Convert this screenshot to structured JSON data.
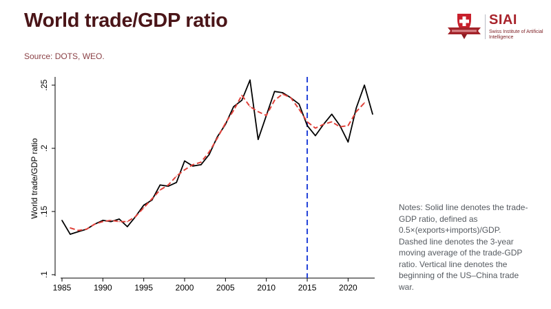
{
  "header": {
    "title": "World trade/GDP ratio",
    "source": "Source: DOTS, WEO."
  },
  "logo": {
    "name": "SIAI",
    "subtitle": "Swiss Institute of Artificial Intelligence",
    "brand_color": "#a8232b"
  },
  "notes": "Notes: Solid line denotes the trade-GDP ratio, defined as 0.5×(exports+imports)/GDP. Dashed line denotes the 3-year moving average of the trade-GDP ratio. Vertical line denotes the beginning of the US–China trade war.",
  "chart_data": {
    "type": "line",
    "title": "World trade/GDP ratio",
    "xlabel": "",
    "ylabel": "World trade/GDP ratio",
    "xlim": [
      1985,
      2023
    ],
    "ylim": [
      0.1,
      0.25
    ],
    "xticks": [
      1985,
      1990,
      1995,
      2000,
      2005,
      2010,
      2015,
      2020
    ],
    "yticks": [
      0.1,
      0.15,
      0.2,
      0.25
    ],
    "ytick_labels": [
      ".1",
      ".15",
      ".2",
      ".25"
    ],
    "grid": false,
    "vline": {
      "x": 2015,
      "label": "Beginning of US–China trade war",
      "color": "#1f3fd8",
      "style": "dashed"
    },
    "series": [
      {
        "name": "Trade-GDP ratio",
        "style": "solid",
        "color": "#000000",
        "x": [
          1985,
          1986,
          1987,
          1988,
          1989,
          1990,
          1991,
          1992,
          1993,
          1994,
          1995,
          1996,
          1997,
          1998,
          1999,
          2000,
          2001,
          2002,
          2003,
          2004,
          2005,
          2006,
          2007,
          2008,
          2009,
          2010,
          2011,
          2012,
          2013,
          2014,
          2015,
          2016,
          2017,
          2018,
          2019,
          2020,
          2021,
          2022,
          2023
        ],
        "values": [
          0.143,
          0.132,
          0.134,
          0.136,
          0.14,
          0.143,
          0.142,
          0.144,
          0.138,
          0.146,
          0.155,
          0.159,
          0.171,
          0.17,
          0.173,
          0.19,
          0.186,
          0.187,
          0.195,
          0.209,
          0.219,
          0.233,
          0.238,
          0.254,
          0.207,
          0.226,
          0.245,
          0.244,
          0.24,
          0.235,
          0.218,
          0.21,
          0.219,
          0.227,
          0.218,
          0.205,
          0.232,
          0.25,
          0.227
        ]
      },
      {
        "name": "3-year moving average",
        "style": "dashed",
        "color": "#e0413a",
        "x": [
          1986,
          1987,
          1988,
          1989,
          1990,
          1991,
          1992,
          1993,
          1994,
          1995,
          1996,
          1997,
          1998,
          1999,
          2000,
          2001,
          2002,
          2003,
          2004,
          2005,
          2006,
          2007,
          2008,
          2009,
          2010,
          2011,
          2012,
          2013,
          2014,
          2015,
          2016,
          2017,
          2018,
          2019,
          2020,
          2021,
          2022
        ],
        "values": [
          0.137,
          0.135,
          0.136,
          0.14,
          0.142,
          0.143,
          0.142,
          0.142,
          0.146,
          0.153,
          0.16,
          0.167,
          0.171,
          0.178,
          0.183,
          0.187,
          0.189,
          0.197,
          0.208,
          0.22,
          0.23,
          0.242,
          0.233,
          0.229,
          0.226,
          0.238,
          0.243,
          0.24,
          0.231,
          0.221,
          0.216,
          0.219,
          0.221,
          0.217,
          0.218,
          0.229,
          0.236
        ]
      }
    ]
  }
}
